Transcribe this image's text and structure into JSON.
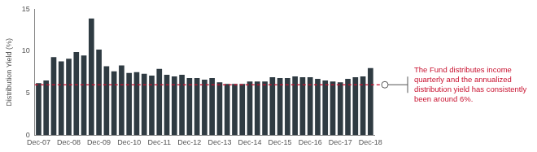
{
  "chart_data": {
    "type": "bar",
    "y_label": "Distribution Yield (%)",
    "categories": [
      "Dec-07",
      null,
      null,
      null,
      "Dec-08",
      null,
      null,
      null,
      "Dec-09",
      null,
      null,
      null,
      "Dec-10",
      null,
      null,
      null,
      "Dec-11",
      null,
      null,
      null,
      "Dec-12",
      null,
      null,
      null,
      "Dec-13",
      null,
      null,
      null,
      "Dec-14",
      null,
      null,
      null,
      "Dec-15",
      null,
      null,
      null,
      "Dec-16",
      null,
      null,
      null,
      "Dec-17",
      null,
      null,
      null,
      "Dec-18"
    ],
    "values": [
      6.2,
      6.5,
      9.3,
      8.8,
      9.1,
      9.9,
      9.5,
      13.9,
      10.2,
      8.2,
      7.6,
      8.3,
      7.4,
      7.5,
      7.3,
      7.1,
      7.9,
      7.2,
      7.0,
      7.2,
      6.8,
      6.8,
      6.6,
      6.8,
      6.3,
      6.1,
      6.1,
      6.1,
      6.4,
      6.4,
      6.4,
      6.9,
      6.8,
      6.8,
      7.0,
      6.9,
      6.9,
      6.7,
      6.5,
      6.4,
      6.3,
      6.7,
      6.9,
      7.0,
      8.0
    ],
    "color": "#2f3b42",
    "ylim": [
      0,
      15
    ],
    "yticks": [
      0,
      5,
      10,
      15
    ],
    "grid": false,
    "annotations": [
      {
        "text": "The Fund distributes income quarterly and the annualized distribution yield has consistently been around 6%.",
        "y": 6,
        "color": "#c8102e",
        "line_style": "dashed"
      }
    ]
  }
}
